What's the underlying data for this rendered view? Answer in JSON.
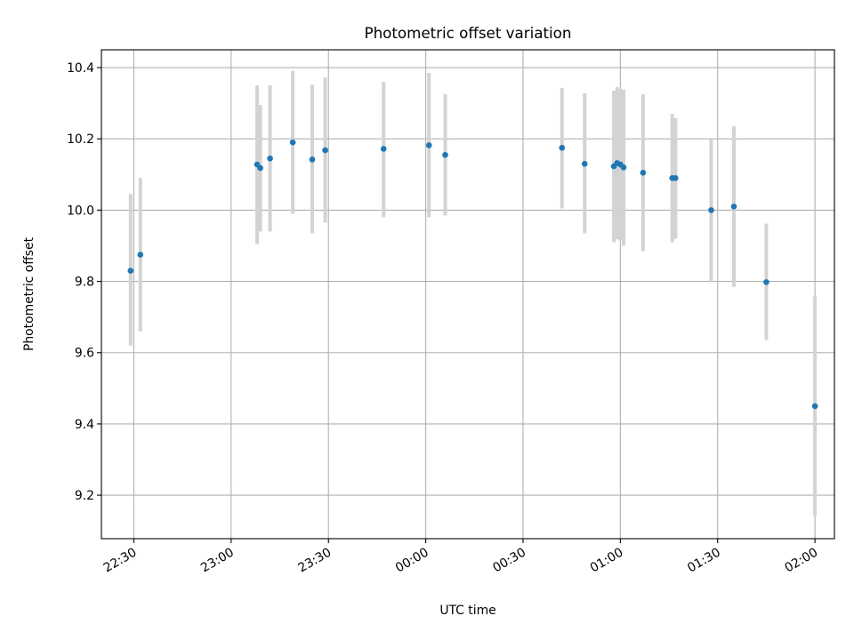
{
  "chart_data": {
    "type": "scatter",
    "title": "Photometric offset variation",
    "xlabel": "UTC time",
    "ylabel": "Photometric offset",
    "x_axis_type": "time",
    "xlim": [
      "22:20",
      "02:06"
    ],
    "ylim": [
      9.078,
      10.45
    ],
    "x_ticks": [
      "22:30",
      "23:00",
      "23:30",
      "00:00",
      "00:30",
      "01:00",
      "01:30",
      "02:00"
    ],
    "y_ticks": [
      "9.2",
      "9.4",
      "9.6",
      "9.8",
      "10.0",
      "10.2",
      "10.4"
    ],
    "grid": true,
    "colors": {
      "point": "#1f77b4",
      "errorbar": "#d3d3d3",
      "grid": "#b0b0b0"
    },
    "series": [
      {
        "points": [
          {
            "t": "22:29",
            "y": 9.83,
            "lo": 9.62,
            "hi": 10.045
          },
          {
            "t": "22:32",
            "y": 9.875,
            "lo": 9.66,
            "hi": 10.09
          },
          {
            "t": "23:08",
            "y": 10.128,
            "lo": 9.905,
            "hi": 10.35
          },
          {
            "t": "23:09",
            "y": 10.118,
            "lo": 9.94,
            "hi": 10.295
          },
          {
            "t": "23:12",
            "y": 10.145,
            "lo": 9.94,
            "hi": 10.35
          },
          {
            "t": "23:19",
            "y": 10.19,
            "lo": 9.99,
            "hi": 10.39
          },
          {
            "t": "23:25",
            "y": 10.142,
            "lo": 9.935,
            "hi": 10.352
          },
          {
            "t": "23:29",
            "y": 10.168,
            "lo": 9.965,
            "hi": 10.372
          },
          {
            "t": "23:47",
            "y": 10.172,
            "lo": 9.98,
            "hi": 10.36
          },
          {
            "t": "00:01",
            "y": 10.182,
            "lo": 9.98,
            "hi": 10.385
          },
          {
            "t": "00:06",
            "y": 10.155,
            "lo": 9.985,
            "hi": 10.325
          },
          {
            "t": "00:42",
            "y": 10.175,
            "lo": 10.005,
            "hi": 10.343
          },
          {
            "t": "00:49",
            "y": 10.13,
            "lo": 9.935,
            "hi": 10.328
          },
          {
            "t": "00:58",
            "y": 10.123,
            "lo": 9.91,
            "hi": 10.335
          },
          {
            "t": "00:59",
            "y": 10.132,
            "lo": 9.918,
            "hi": 10.345
          },
          {
            "t": "01:00",
            "y": 10.128,
            "lo": 9.915,
            "hi": 10.34
          },
          {
            "t": "01:01",
            "y": 10.12,
            "lo": 9.9,
            "hi": 10.338
          },
          {
            "t": "01:07",
            "y": 10.105,
            "lo": 9.885,
            "hi": 10.325
          },
          {
            "t": "01:16",
            "y": 10.09,
            "lo": 9.91,
            "hi": 10.27
          },
          {
            "t": "01:17",
            "y": 10.09,
            "lo": 9.92,
            "hi": 10.258
          },
          {
            "t": "01:28",
            "y": 10.0,
            "lo": 9.8,
            "hi": 10.2
          },
          {
            "t": "01:35",
            "y": 10.01,
            "lo": 9.785,
            "hi": 10.235
          },
          {
            "t": "01:45",
            "y": 9.798,
            "lo": 9.635,
            "hi": 9.962
          },
          {
            "t": "02:00",
            "y": 9.45,
            "lo": 9.142,
            "hi": 9.758
          }
        ]
      }
    ]
  }
}
